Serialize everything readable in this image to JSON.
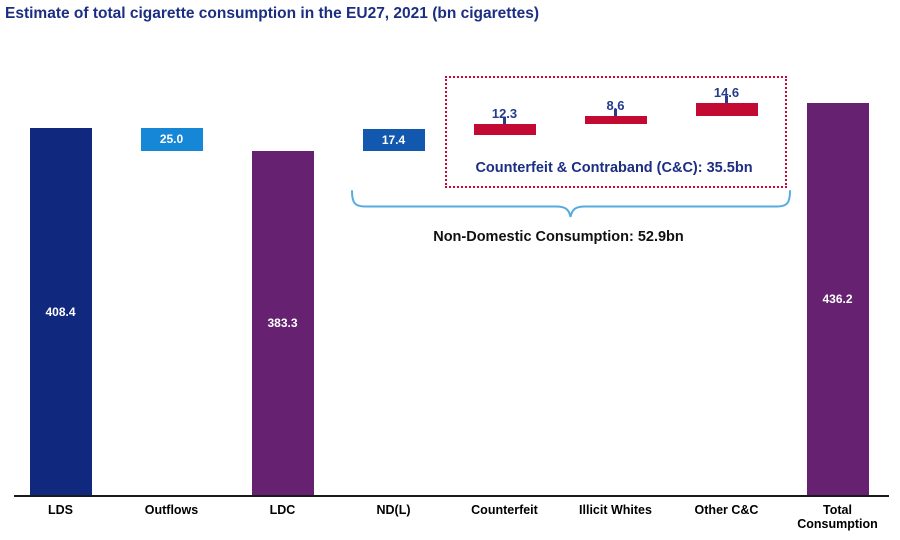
{
  "title": "Estimate of total cigarette consumption in the EU27, 2021 (bn cigarettes)",
  "colors": {
    "navy_bar": "#10297F",
    "light_blue_bar": "#1687D6",
    "mid_blue_bar": "#1158AE",
    "purple_bar": "#662271",
    "red_bar": "#C30A33",
    "title_text": "#1C2E82",
    "value_above_text": "#243B8E",
    "box_border": "#C9083C",
    "box_label_text": "#1C2E82",
    "brace": "#56ACDF",
    "axis": "#1A1A1A"
  },
  "chart_data": {
    "type": "bar",
    "subtype": "waterfall",
    "title": "Estimate of total cigarette consumption in the EU27, 2021 (bn cigarettes)",
    "unit": "bn cigarettes",
    "ylim": [
      0,
      436.2
    ],
    "gridlines": false,
    "legend": false,
    "categories": [
      "LDS",
      "Outflows",
      "LDC",
      "ND(L)",
      "Counterfeit",
      "Illicit Whites",
      "Other C&C",
      "Total Consumption"
    ],
    "bars": [
      {
        "label": "LDS",
        "value": 408.4,
        "value_label": "408.4",
        "base": 0,
        "top": 408.4,
        "color": "navy_bar",
        "value_label_position": "inside",
        "tick": false
      },
      {
        "label": "Outflows",
        "value": 25.0,
        "value_label": "25.0",
        "base": 383.4,
        "top": 408.4,
        "color": "light_blue_bar",
        "value_label_position": "inside",
        "tick": false
      },
      {
        "label": "LDC",
        "value": 383.3,
        "value_label": "383.3",
        "base": 0,
        "top": 383.3,
        "color": "purple_bar",
        "value_label_position": "inside",
        "tick": false
      },
      {
        "label": "ND(L)",
        "value": 17.4,
        "value_label": "17.4",
        "base": 383.3,
        "top": 400.7,
        "color": "mid_blue_bar",
        "value_label_position": "inside",
        "tick": false
      },
      {
        "label": "Counterfeit",
        "value": 12.3,
        "value_label": "12.3",
        "base": 400.7,
        "top": 413.0,
        "color": "red_bar",
        "value_label_position": "above",
        "tick": true
      },
      {
        "label": "Illicit Whites",
        "value": 8.6,
        "value_label": "8.6",
        "base": 413.0,
        "top": 421.6,
        "color": "red_bar",
        "value_label_position": "above",
        "tick": true
      },
      {
        "label": "Other C&C",
        "value": 14.6,
        "value_label": "14.6",
        "base": 421.6,
        "top": 436.2,
        "color": "red_bar",
        "value_label_position": "above",
        "tick": true
      },
      {
        "label": "Total Consumption",
        "value": 436.2,
        "value_label": "436.2",
        "base": 0,
        "top": 436.2,
        "color": "purple_bar",
        "value_label_position": "inside",
        "tick": false
      }
    ],
    "annotations": {
      "cc_box_label": "Counterfeit & Contraband (C&C): 35.5bn",
      "ndc_brace_label": "Non-Domestic Consumption: 52.9bn"
    }
  }
}
